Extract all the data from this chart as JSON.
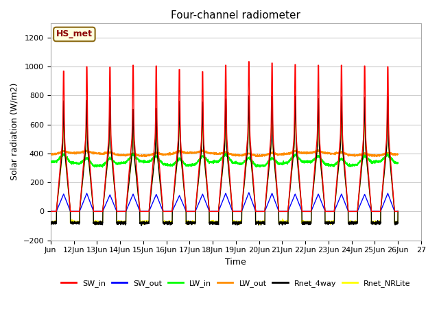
{
  "title": "Four-channel radiometer",
  "xlabel": "Time",
  "ylabel": "Solar radiation (W/m2)",
  "ylim": [
    -200,
    1300
  ],
  "yticks": [
    -200,
    0,
    200,
    400,
    600,
    800,
    1000,
    1200
  ],
  "station_label": "HS_met",
  "x_tick_labels": [
    "Jun",
    "12Jun",
    "13Jun",
    "14Jun",
    "15Jun",
    "16Jun",
    "17Jun",
    "18Jun",
    "19Jun",
    "20Jun",
    "21Jun",
    "22Jun",
    "23Jun",
    "24Jun",
    "25Jun",
    "26Jun",
    "27"
  ],
  "num_days": 15,
  "points_per_day": 288,
  "SW_in_broad_peak": [
    970,
    1000,
    997,
    1010,
    1005,
    980,
    965,
    1010,
    1035,
    1025,
    1015,
    1010,
    1010,
    1005,
    1000
  ],
  "SW_out_peak": [
    120,
    125,
    115,
    120,
    118,
    110,
    120,
    125,
    130,
    125,
    120,
    120,
    120,
    118,
    125
  ],
  "LW_in_base": 330,
  "LW_out_base": 395,
  "Rnet_4way_peak": [
    665,
    668,
    685,
    615,
    620,
    665,
    660,
    680,
    700,
    695,
    700,
    680,
    690,
    685,
    690
  ],
  "Rnet_NRLite_peak": [
    640,
    650,
    670,
    600,
    610,
    650,
    645,
    665,
    685,
    680,
    685,
    665,
    675,
    670,
    680
  ],
  "night_Rnet": -80,
  "night_NRLite": -75,
  "colors": {
    "SW_in": "#ff0000",
    "SW_out": "#0000ff",
    "LW_in": "#00ff00",
    "LW_out": "#ff8c00",
    "Rnet_4way": "#000000",
    "Rnet_NRLite": "#ffff00"
  },
  "bg_color": "#ffffff",
  "grid_color": "#cccccc",
  "legend_entries": [
    "SW_in",
    "SW_out",
    "LW_in",
    "LW_out",
    "Rnet_4way",
    "Rnet_NRLite"
  ]
}
